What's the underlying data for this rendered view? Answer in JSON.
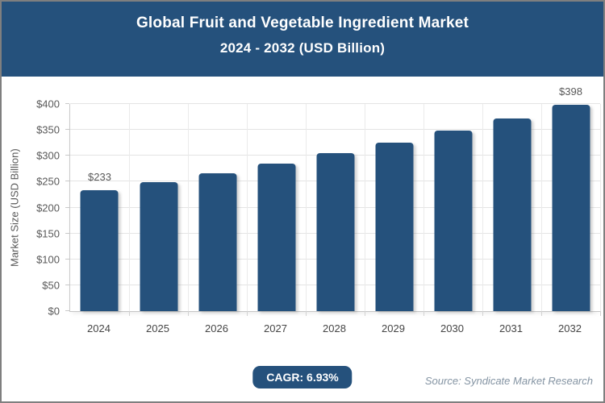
{
  "header": {
    "title": "Global Fruit and Vegetable Ingredient Market",
    "subtitle": "2024 - 2032 (USD Billion)"
  },
  "chart_data": {
    "type": "bar",
    "title": "Global Fruit and Vegetable Ingredient Market 2024 - 2032 (USD Billion)",
    "categories": [
      "2024",
      "2025",
      "2026",
      "2027",
      "2028",
      "2029",
      "2030",
      "2031",
      "2032"
    ],
    "values": [
      233,
      249,
      266,
      285,
      305,
      326,
      348,
      372,
      398
    ],
    "point_labels": [
      "$233",
      "",
      "",
      "",
      "",
      "",
      "",
      "",
      "$398"
    ],
    "xlabel": "",
    "ylabel": "Market Size (USD Billion)",
    "ylim": [
      0,
      400
    ],
    "y_ticks": [
      0,
      50,
      100,
      150,
      200,
      250,
      300,
      350,
      400
    ],
    "y_tick_labels": [
      "$0",
      "$50",
      "$100",
      "$150",
      "$200",
      "$250",
      "$300",
      "$350",
      "$400"
    ],
    "grid": true,
    "legend": "none",
    "bar_color": "#25517C"
  },
  "footer": {
    "cagr_label": "CAGR: 6.93%",
    "source": "Source: Syndicate Market Research"
  },
  "colors": {
    "header_bg": "#25517C",
    "badge_bg": "#25517C",
    "bar": "#25517C",
    "gridline": "#E4E4E4",
    "axis_line": "#C9C9C9",
    "tick_text": "#595959",
    "x_tick_text": "#454545",
    "source_text": "#8494A3",
    "frame_border": "#7F7F7F"
  }
}
